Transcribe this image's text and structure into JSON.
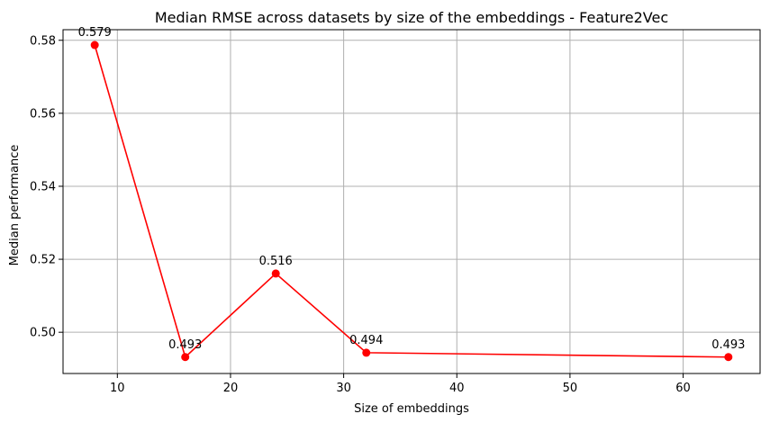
{
  "chart_data": {
    "type": "line",
    "title": "Median RMSE across datasets by size of the embeddings - Feature2Vec",
    "xlabel": "Size of embeddings",
    "ylabel": "Median performance",
    "xlim": [
      5.2,
      66.8
    ],
    "ylim": [
      0.4887,
      0.5829
    ],
    "xticks": [
      10,
      20,
      30,
      40,
      50,
      60
    ],
    "xtick_labels": [
      "10",
      "20",
      "30",
      "40",
      "50",
      "60"
    ],
    "yticks": [
      0.5,
      0.52,
      0.54,
      0.56,
      0.58
    ],
    "ytick_labels": [
      "0.50",
      "0.52",
      "0.54",
      "0.56",
      "0.58"
    ],
    "grid": true,
    "series": [
      {
        "color": "#ff0000",
        "marker": "circle",
        "x": [
          8,
          16,
          24,
          32,
          64
        ],
        "y": [
          0.5787,
          0.4932,
          0.5161,
          0.4944,
          0.4932
        ],
        "labels": [
          "0.579",
          "0.493",
          "0.516",
          "0.494",
          "0.493"
        ]
      }
    ]
  }
}
